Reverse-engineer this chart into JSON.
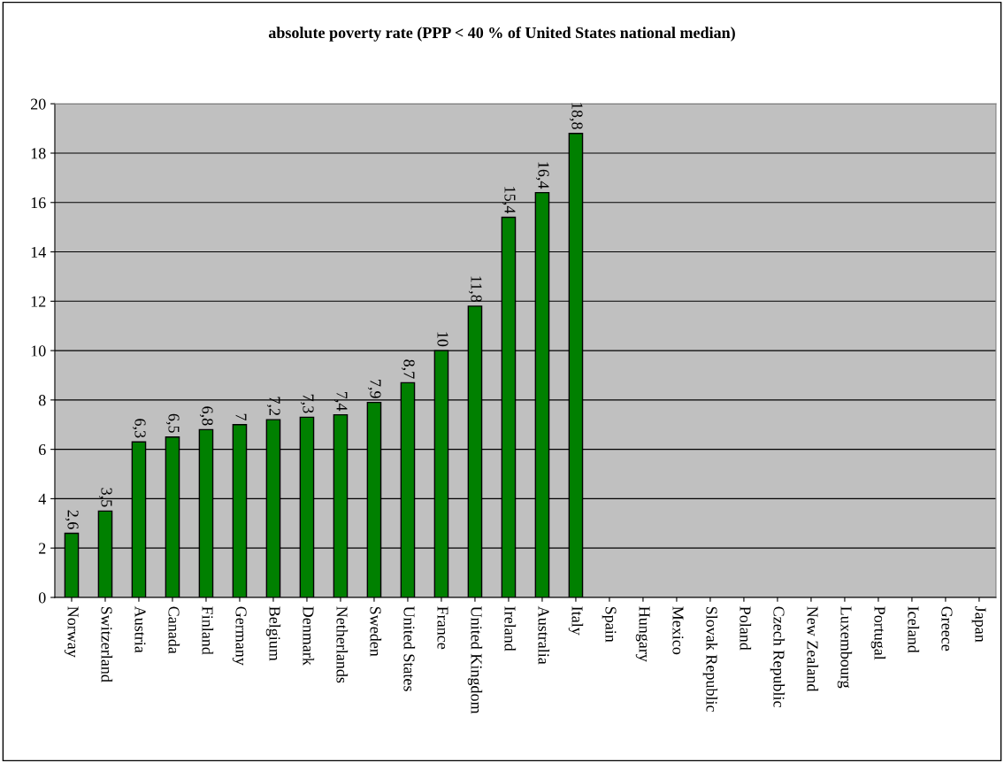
{
  "chart_data": {
    "type": "bar",
    "title": "absolute poverty rate (PPP < 40 % of United States national median)",
    "categories": [
      "Norway",
      "Switzerland",
      "Austria",
      "Canada",
      "Finland",
      "Germany",
      "Belgium",
      "Denmark",
      "Netherlands",
      "Sweden",
      "United States",
      "France",
      "United Kingdom",
      "Ireland",
      "Australia",
      "Italy",
      "Spain",
      "Hungary",
      "Mexico",
      "Slovak Republic",
      "Poland",
      "Czech Republic",
      "New Zealand",
      "Luxembourg",
      "Portugal",
      "Iceland",
      "Greece",
      "Japan"
    ],
    "values": [
      2.6,
      3.5,
      6.3,
      6.5,
      6.8,
      7,
      7.2,
      7.3,
      7.4,
      7.9,
      8.7,
      10,
      11.8,
      15.4,
      16.4,
      18.8,
      null,
      null,
      null,
      null,
      null,
      null,
      null,
      null,
      null,
      null,
      null,
      null
    ],
    "value_labels": [
      "2,6",
      "3,5",
      "6,3",
      "6,5",
      "6,8",
      "7",
      "7,2",
      "7,3",
      "7,4",
      "7,9",
      "8,7",
      "10",
      "11,8",
      "15,4",
      "16,4",
      "18,8",
      null,
      null,
      null,
      null,
      null,
      null,
      null,
      null,
      null,
      null,
      null,
      null
    ],
    "color": "#008000",
    "ylim": [
      0,
      20
    ],
    "yticks": [
      0,
      2,
      4,
      6,
      8,
      10,
      12,
      14,
      16,
      18,
      20
    ],
    "grid": "y"
  }
}
